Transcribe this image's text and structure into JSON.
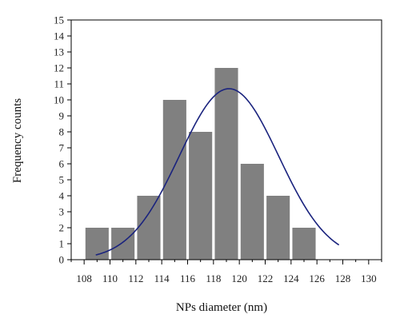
{
  "chart_data": {
    "type": "bar",
    "title": "",
    "xlabel": "NPs diameter (nm)",
    "ylabel": "Frequency counts",
    "xlim": [
      107,
      131
    ],
    "ylim": [
      0,
      15
    ],
    "x_ticks": [
      108,
      110,
      112,
      114,
      116,
      118,
      120,
      122,
      124,
      126,
      128,
      130
    ],
    "y_ticks": [
      0,
      1,
      2,
      3,
      4,
      5,
      6,
      7,
      8,
      9,
      10,
      11,
      12,
      13,
      14,
      15
    ],
    "bin_width": 2,
    "bins": [
      {
        "center": 109,
        "count": 2
      },
      {
        "center": 111,
        "count": 2
      },
      {
        "center": 113,
        "count": 4
      },
      {
        "center": 115,
        "count": 10
      },
      {
        "center": 117,
        "count": 8
      },
      {
        "center": 119,
        "count": 12
      },
      {
        "center": 121,
        "count": 6
      },
      {
        "center": 123,
        "count": 4
      },
      {
        "center": 125,
        "count": 2
      }
    ],
    "fit_curve": {
      "type": "gaussian",
      "color": "#1a237e",
      "x_range": [
        108.9,
        127.7
      ],
      "peak_x": 119.2,
      "peak_y": 10.7,
      "sigma": 3.84
    },
    "grid": false,
    "legend": "none",
    "bar_color": "#808080"
  }
}
